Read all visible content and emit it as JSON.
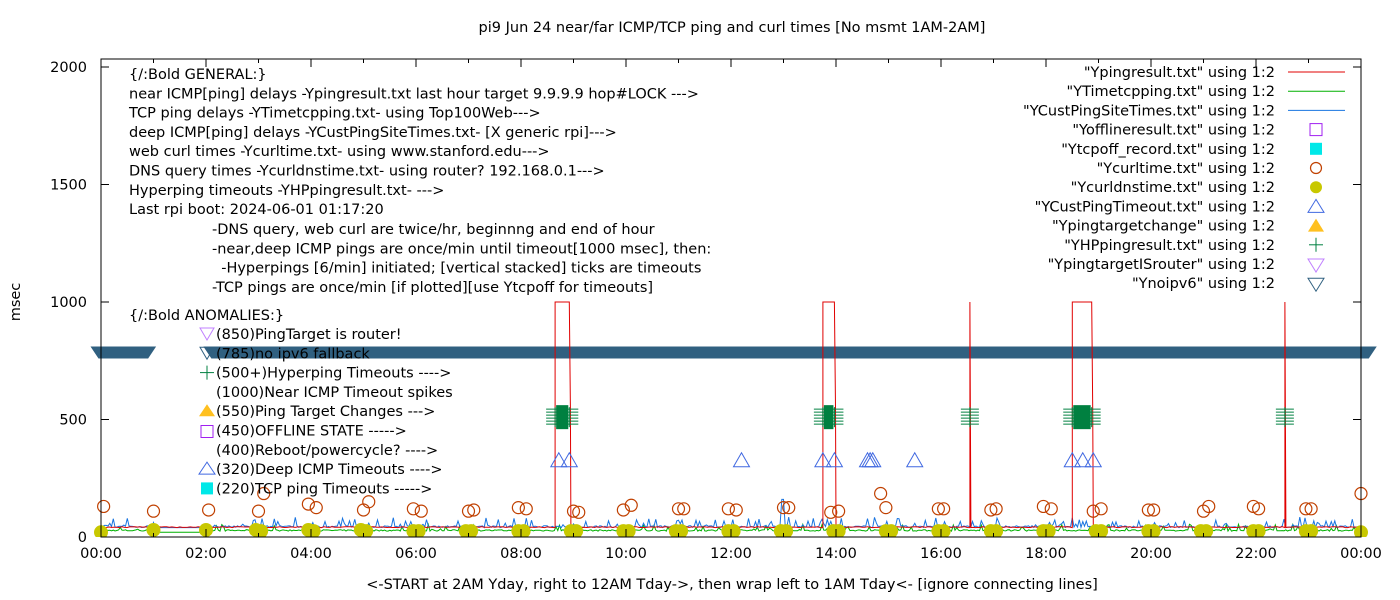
{
  "chart_data": {
    "type": "line",
    "title": "pi9 Jun 24  near/far ICMP/TCP ping and curl times [No msmt 1AM-2AM]",
    "xlabel": "<-START at 2AM Yday, right to 12AM Tday->, then wrap left to 1AM Tday<- [ignore connecting lines]",
    "ylabel": "msec",
    "xlim_hours": [
      0,
      24
    ],
    "ylim": [
      0,
      2000
    ],
    "x_ticks": [
      "00:00",
      "02:00",
      "04:00",
      "06:00",
      "08:00",
      "10:00",
      "12:00",
      "14:00",
      "16:00",
      "18:00",
      "20:00",
      "22:00",
      "00:00"
    ],
    "y_ticks": [
      "0",
      "500",
      "1000",
      "1500",
      "2000"
    ],
    "grid": false,
    "legend_position": "top-right",
    "annotations": {
      "general": [
        "{/:Bold GENERAL:}",
        "near ICMP[ping] delays -Ypingresult.txt last hour target 9.9.9.9 hop#LOCK --->",
        "TCP ping delays -YTimetcpping.txt- using Top100Web--->",
        "deep ICMP[ping] delays -YCustPingSiteTimes.txt- [X generic rpi]--->",
        "web curl times -Ycurltime.txt- using www.stanford.edu--->",
        "DNS query times -Ycurldnstime.txt- using router? 192.168.0.1--->",
        "Hyperping timeouts -YHPpingresult.txt- --->",
        "Last rpi boot: 2024-06-01 01:17:20"
      ],
      "notes": [
        "-DNS query, web curl are twice/hr, beginnng and end of hour",
        "-near,deep ICMP pings are once/min until timeout[1000 msec], then:",
        "  -Hyperpings [6/min] initiated; [vertical stacked] ticks are timeouts",
        "-TCP pings are once/min [if plotted][use Ytcpoff for timeouts]"
      ],
      "anomalies_title": "{/:Bold ANOMALIES:}",
      "anomalies": [
        {
          "marker": "tri-down-violet",
          "text": "(850)PingTarget is router!"
        },
        {
          "marker": "tri-down-navy",
          "text": "(785)no ipv6 fallback"
        },
        {
          "marker": "plus-green",
          "text": "(500+)Hyperping Timeouts ---->"
        },
        {
          "marker": "none",
          "text": "(1000)Near ICMP Timeout spikes"
        },
        {
          "marker": "tri-up-orange",
          "text": "(550)Ping Target Changes --->"
        },
        {
          "marker": "square-purple",
          "text": "(450)OFFLINE STATE ----->"
        },
        {
          "marker": "none",
          "text": "(400)Reboot/powercycle? ---->"
        },
        {
          "marker": "tri-up-blue",
          "text": "(320)Deep ICMP Timeouts ---->"
        },
        {
          "marker": "square-cyan",
          "text": "(220)TCP ping Timeouts ----->"
        }
      ]
    },
    "legend": [
      {
        "label": "\"Ypingresult.txt\" using 1:2",
        "style": "line",
        "color": "#e00000"
      },
      {
        "label": "\"YTimetcpping.txt\" using 1:2",
        "style": "line",
        "color": "#00b000"
      },
      {
        "label": "\"YCustPingSiteTimes.txt\" using 1:2",
        "style": "line",
        "color": "#1874e0"
      },
      {
        "label": "\"Yofflineresult.txt\" using 1:2",
        "style": "square-open",
        "color": "#a020f0"
      },
      {
        "label": "\"Ytcpoff_record.txt\" using 1:2",
        "style": "square-filled",
        "color": "#00e8e8"
      },
      {
        "label": "\"Ycurltime.txt\" using 1:2",
        "style": "circle-open",
        "color": "#c04000"
      },
      {
        "label": "\"Ycurldnstime.txt\" using 1:2",
        "style": "circle-filled",
        "color": "#c8c800"
      },
      {
        "label": "\"YCustPingTimeout.txt\" using 1:2",
        "style": "tri-up-open",
        "color": "#4169e1"
      },
      {
        "label": "\"Ypingtargetchange\" using 1:2",
        "style": "tri-up-filled",
        "color": "#ffc020"
      },
      {
        "label": "\"YHPpingresult.txt\" using 1:2",
        "style": "plus",
        "color": "#008040"
      },
      {
        "label": "\"YpingtargetISrouter\" using 1:2",
        "style": "tri-down-open",
        "color": "#c080ff"
      },
      {
        "label": "\"Ynoipv6\" using 1:2",
        "style": "tri-down-open",
        "color": "#306080"
      }
    ],
    "series": [
      {
        "name": "Ypingresult.txt",
        "baseline_msec": 40,
        "timeout_blocks_hours": [
          [
            8.65,
            8.92
          ],
          [
            13.75,
            13.97
          ],
          [
            18.5,
            18.87
          ]
        ],
        "timeout_spikes_hours": [
          16.55,
          22.55
        ],
        "timeout_level_msec": 1000,
        "gap_hours": [
          1.0,
          2.0
        ]
      },
      {
        "name": "YTimetcpping.txt",
        "baseline_msec": 25
      },
      {
        "name": "YCustPingSiteTimes.txt",
        "baseline_msec": 40,
        "typical_peak_msec": 80
      },
      {
        "name": "YHPpingresult.txt",
        "value_msec": 510,
        "clusters_hours": [
          8.65,
          8.92,
          13.75,
          13.97,
          16.55,
          18.5,
          18.87,
          22.55
        ]
      },
      {
        "name": "YCustPingTimeout.txt",
        "value_msec": 320,
        "x_hours": [
          8.72,
          8.92,
          12.2,
          13.75,
          13.97,
          14.6,
          14.65,
          14.7,
          15.5,
          18.5,
          18.7,
          18.9
        ]
      },
      {
        "name": "Ycurltime.txt",
        "points": [
          [
            0.05,
            130
          ],
          [
            1.0,
            110
          ],
          [
            2.05,
            115
          ],
          [
            3.0,
            110
          ],
          [
            3.1,
            185
          ],
          [
            3.95,
            140
          ],
          [
            4.1,
            125
          ],
          [
            5.0,
            115
          ],
          [
            5.1,
            150
          ],
          [
            5.95,
            120
          ],
          [
            6.1,
            110
          ],
          [
            7.0,
            110
          ],
          [
            7.1,
            115
          ],
          [
            7.95,
            125
          ],
          [
            8.1,
            120
          ],
          [
            9.0,
            110
          ],
          [
            9.1,
            105
          ],
          [
            9.95,
            115
          ],
          [
            10.1,
            135
          ],
          [
            11.0,
            120
          ],
          [
            11.1,
            120
          ],
          [
            11.95,
            120
          ],
          [
            12.1,
            115
          ],
          [
            13.0,
            125
          ],
          [
            13.1,
            125
          ],
          [
            13.9,
            105
          ],
          [
            14.05,
            110
          ],
          [
            14.85,
            185
          ],
          [
            14.95,
            125
          ],
          [
            15.95,
            120
          ],
          [
            16.05,
            120
          ],
          [
            16.95,
            115
          ],
          [
            17.05,
            120
          ],
          [
            17.95,
            130
          ],
          [
            18.1,
            120
          ],
          [
            18.9,
            110
          ],
          [
            19.05,
            120
          ],
          [
            19.95,
            115
          ],
          [
            20.05,
            115
          ],
          [
            21.0,
            110
          ],
          [
            21.1,
            130
          ],
          [
            21.95,
            130
          ],
          [
            22.05,
            120
          ],
          [
            22.95,
            120
          ],
          [
            23.05,
            120
          ],
          [
            24.0,
            185
          ]
        ]
      },
      {
        "name": "Ycurldnstime.txt",
        "points": [
          [
            0.0,
            20
          ],
          [
            1.0,
            30
          ],
          [
            2.0,
            30
          ],
          [
            2.95,
            30
          ],
          [
            3.05,
            25
          ],
          [
            3.95,
            30
          ],
          [
            4.05,
            25
          ],
          [
            4.95,
            30
          ],
          [
            5.05,
            25
          ],
          [
            5.95,
            25
          ],
          [
            6.05,
            25
          ],
          [
            6.95,
            25
          ],
          [
            7.05,
            25
          ],
          [
            7.95,
            25
          ],
          [
            8.05,
            25
          ],
          [
            8.95,
            25
          ],
          [
            9.05,
            25
          ],
          [
            9.95,
            25
          ],
          [
            10.05,
            25
          ],
          [
            10.95,
            25
          ],
          [
            11.05,
            25
          ],
          [
            11.95,
            25
          ],
          [
            12.05,
            25
          ],
          [
            12.95,
            25
          ],
          [
            13.05,
            25
          ],
          [
            13.95,
            25
          ],
          [
            14.05,
            25
          ],
          [
            14.95,
            25
          ],
          [
            15.05,
            25
          ],
          [
            15.95,
            25
          ],
          [
            16.05,
            25
          ],
          [
            16.95,
            25
          ],
          [
            17.05,
            25
          ],
          [
            17.95,
            25
          ],
          [
            18.05,
            25
          ],
          [
            18.95,
            25
          ],
          [
            19.05,
            25
          ],
          [
            19.95,
            25
          ],
          [
            20.05,
            25
          ],
          [
            20.95,
            25
          ],
          [
            21.05,
            25
          ],
          [
            21.95,
            25
          ],
          [
            22.05,
            25
          ],
          [
            22.95,
            25
          ],
          [
            23.05,
            25
          ],
          [
            24.0,
            20
          ]
        ]
      },
      {
        "name": "Ynoipv6",
        "value_msec": 785,
        "x_ranges_hours": [
          [
            -0.2,
            1.05
          ],
          [
            1.95,
            24.3
          ]
        ]
      }
    ]
  }
}
